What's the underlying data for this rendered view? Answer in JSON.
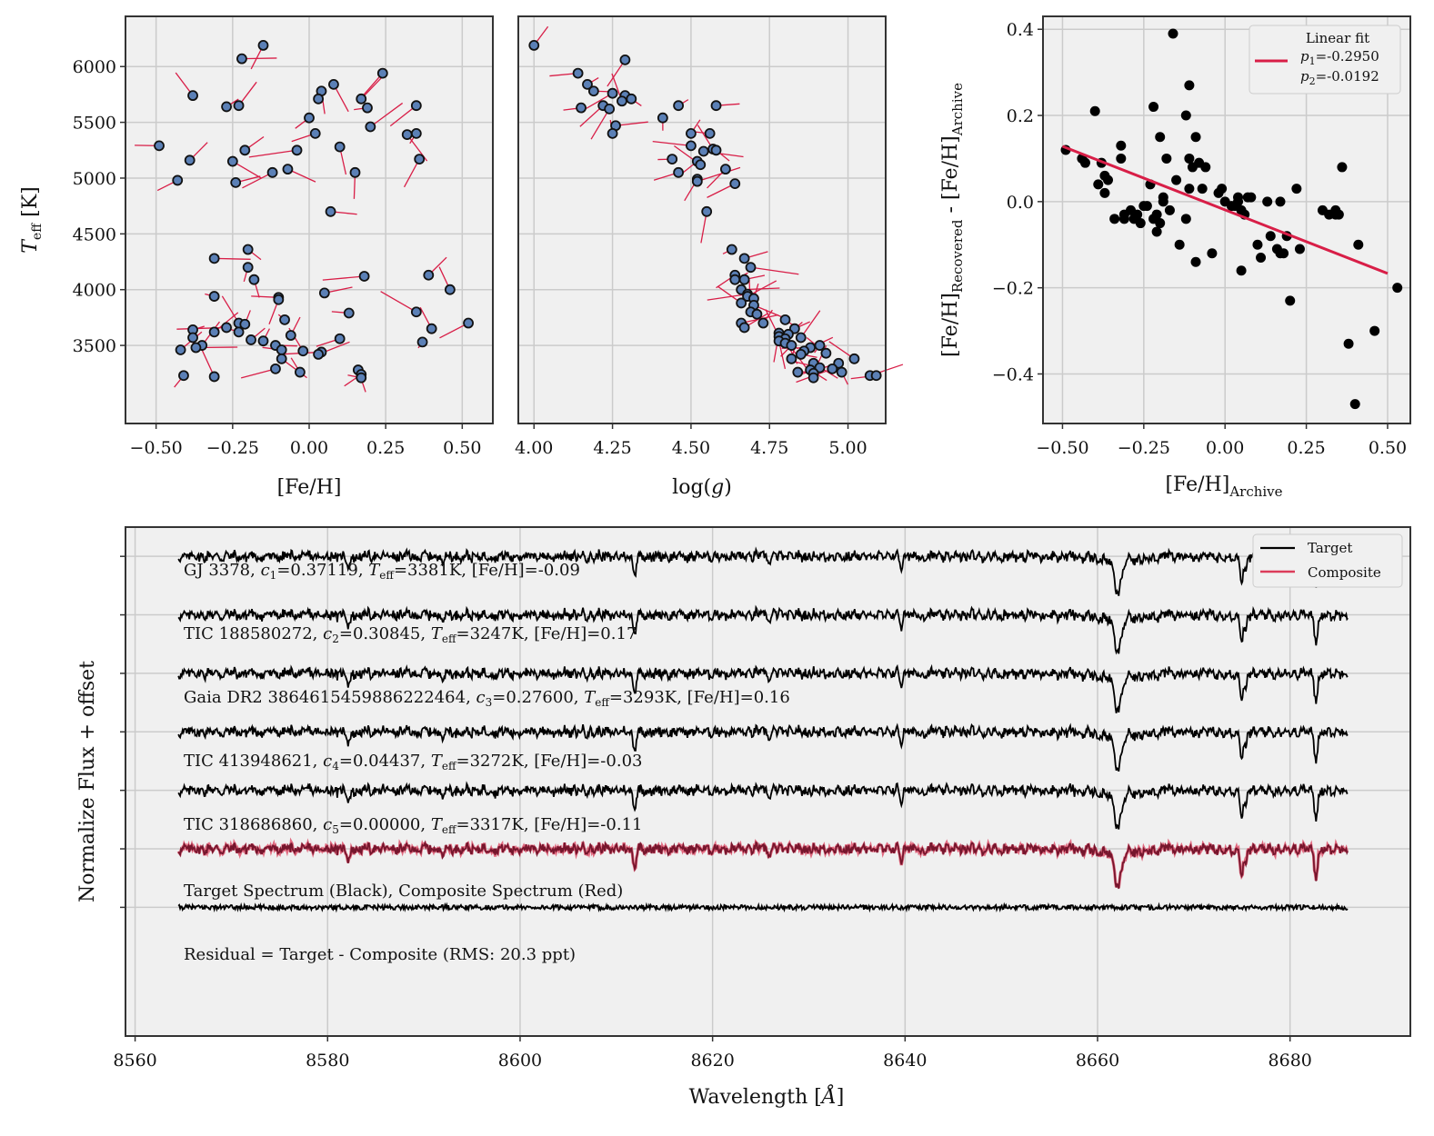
{
  "chart_data": [
    {
      "id": "teff-feh",
      "type": "scatter",
      "xlabel": "[Fe/H]",
      "ylabel_main": "T",
      "ylabel_sub": "eff",
      "ylabel_unit": " [K]",
      "xlim": [
        -0.6,
        0.6
      ],
      "ylim": [
        2800,
        6450
      ],
      "xticks": [
        -0.5,
        -0.25,
        0.0,
        0.25,
        0.5
      ],
      "xtick_labels": [
        "−0.50",
        "−0.25",
        "0.00",
        "0.25",
        "0.50"
      ],
      "yticks": [
        3500,
        4000,
        4500,
        5000,
        5500,
        6000
      ],
      "ytick_labels": [
        "3500",
        "4000",
        "4500",
        "5000",
        "5500",
        "6000"
      ],
      "points": [
        [
          -0.15,
          6190
        ],
        [
          -0.22,
          6070
        ],
        [
          -0.38,
          5740
        ],
        [
          -0.27,
          5640
        ],
        [
          -0.23,
          5650
        ],
        [
          0.24,
          5940
        ],
        [
          0.08,
          5840
        ],
        [
          0.04,
          5780
        ],
        [
          0.03,
          5710
        ],
        [
          0.17,
          5710
        ],
        [
          0.19,
          5630
        ],
        [
          0.35,
          5650
        ],
        [
          0.0,
          5540
        ],
        [
          0.2,
          5460
        ],
        [
          0.02,
          5400
        ],
        [
          0.32,
          5390
        ],
        [
          0.35,
          5400
        ],
        [
          -0.49,
          5290
        ],
        [
          -0.04,
          5250
        ],
        [
          0.1,
          5280
        ],
        [
          -0.21,
          5250
        ],
        [
          0.36,
          5170
        ],
        [
          -0.39,
          5160
        ],
        [
          -0.25,
          5150
        ],
        [
          -0.07,
          5080
        ],
        [
          -0.12,
          5050
        ],
        [
          0.15,
          5050
        ],
        [
          -0.43,
          4980
        ],
        [
          -0.24,
          4960
        ],
        [
          0.07,
          4700
        ],
        [
          -0.2,
          4360
        ],
        [
          -0.31,
          4280
        ],
        [
          -0.2,
          4200
        ],
        [
          -0.18,
          4090
        ],
        [
          0.18,
          4120
        ],
        [
          0.39,
          4130
        ],
        [
          0.46,
          4000
        ],
        [
          -0.31,
          3940
        ],
        [
          -0.1,
          3930
        ],
        [
          -0.1,
          3910
        ],
        [
          0.05,
          3970
        ],
        [
          0.13,
          3790
        ],
        [
          0.35,
          3800
        ],
        [
          -0.08,
          3730
        ],
        [
          0.52,
          3700
        ],
        [
          -0.23,
          3700
        ],
        [
          -0.21,
          3690
        ],
        [
          -0.27,
          3660
        ],
        [
          -0.23,
          3620
        ],
        [
          -0.31,
          3620
        ],
        [
          0.4,
          3650
        ],
        [
          -0.38,
          3640
        ],
        [
          -0.38,
          3570
        ],
        [
          -0.06,
          3590
        ],
        [
          -0.19,
          3550
        ],
        [
          -0.15,
          3540
        ],
        [
          0.1,
          3560
        ],
        [
          0.37,
          3530
        ],
        [
          -0.35,
          3500
        ],
        [
          -0.37,
          3480
        ],
        [
          -0.42,
          3460
        ],
        [
          -0.11,
          3500
        ],
        [
          -0.09,
          3460
        ],
        [
          -0.02,
          3450
        ],
        [
          0.04,
          3440
        ],
        [
          0.03,
          3420
        ],
        [
          -0.09,
          3380
        ],
        [
          0.16,
          3280
        ],
        [
          -0.11,
          3290
        ],
        [
          -0.03,
          3260
        ],
        [
          0.17,
          3240
        ],
        [
          -0.41,
          3230
        ],
        [
          0.17,
          3210
        ],
        [
          -0.31,
          3220
        ]
      ]
    },
    {
      "id": "teff-logg",
      "type": "scatter",
      "xlabel_prefix": "log(",
      "xlabel_var": "g",
      "xlabel_suffix": ")",
      "xlim": [
        3.95,
        5.12
      ],
      "ylim": [
        2800,
        6450
      ],
      "xticks": [
        4.0,
        4.25,
        4.5,
        4.75,
        5.0
      ],
      "xtick_labels": [
        "4.00",
        "4.25",
        "4.50",
        "4.75",
        "5.00"
      ],
      "points": [
        [
          4.0,
          6190
        ],
        [
          4.29,
          6060
        ],
        [
          4.14,
          5940
        ],
        [
          4.17,
          5840
        ],
        [
          4.19,
          5780
        ],
        [
          4.25,
          5760
        ],
        [
          4.29,
          5740
        ],
        [
          4.31,
          5710
        ],
        [
          4.28,
          5690
        ],
        [
          4.22,
          5650
        ],
        [
          4.15,
          5630
        ],
        [
          4.24,
          5620
        ],
        [
          4.46,
          5650
        ],
        [
          4.58,
          5650
        ],
        [
          4.41,
          5540
        ],
        [
          4.26,
          5470
        ],
        [
          4.25,
          5400
        ],
        [
          4.5,
          5400
        ],
        [
          4.56,
          5400
        ],
        [
          4.5,
          5290
        ],
        [
          4.57,
          5260
        ],
        [
          4.58,
          5250
        ],
        [
          4.54,
          5240
        ],
        [
          4.44,
          5170
        ],
        [
          4.52,
          5150
        ],
        [
          4.53,
          5120
        ],
        [
          4.61,
          5080
        ],
        [
          4.46,
          5050
        ],
        [
          4.52,
          4990
        ],
        [
          4.52,
          4970
        ],
        [
          4.64,
          4950
        ],
        [
          4.55,
          4700
        ],
        [
          4.63,
          4360
        ],
        [
          4.67,
          4280
        ],
        [
          4.69,
          4200
        ],
        [
          4.64,
          4130
        ],
        [
          4.64,
          4090
        ],
        [
          4.67,
          4090
        ],
        [
          4.66,
          4000
        ],
        [
          4.68,
          3960
        ],
        [
          4.68,
          3940
        ],
        [
          4.7,
          3920
        ],
        [
          4.66,
          3880
        ],
        [
          4.7,
          3860
        ],
        [
          4.69,
          3800
        ],
        [
          4.71,
          3780
        ],
        [
          4.73,
          3700
        ],
        [
          4.66,
          3700
        ],
        [
          4.67,
          3660
        ],
        [
          4.8,
          3730
        ],
        [
          4.83,
          3650
        ],
        [
          4.78,
          3610
        ],
        [
          4.81,
          3600
        ],
        [
          4.78,
          3580
        ],
        [
          4.8,
          3560
        ],
        [
          4.85,
          3570
        ],
        [
          4.78,
          3540
        ],
        [
          4.8,
          3520
        ],
        [
          4.82,
          3500
        ],
        [
          4.88,
          3480
        ],
        [
          4.91,
          3500
        ],
        [
          4.86,
          3450
        ],
        [
          4.85,
          3420
        ],
        [
          4.82,
          3380
        ],
        [
          4.93,
          3430
        ],
        [
          4.89,
          3340
        ],
        [
          4.97,
          3340
        ],
        [
          5.02,
          3380
        ],
        [
          4.88,
          3280
        ],
        [
          4.91,
          3300
        ],
        [
          4.95,
          3290
        ],
        [
          4.84,
          3260
        ],
        [
          4.89,
          3250
        ],
        [
          4.98,
          3260
        ],
        [
          5.07,
          3230
        ],
        [
          5.09,
          3230
        ],
        [
          4.89,
          3210
        ]
      ]
    },
    {
      "id": "feh-residual",
      "type": "scatter",
      "xlabel_main": "[Fe/H]",
      "xlabel_sub": "Archive",
      "ylabel_a": "[Fe/H]",
      "ylabel_a_sub": "Recovered",
      "ylabel_mid": " - [Fe/H]",
      "ylabel_b_sub": "Archive",
      "xlim": [
        -0.56,
        0.57
      ],
      "ylim": [
        -0.515,
        0.43
      ],
      "xticks": [
        -0.5,
        -0.25,
        0.0,
        0.25,
        0.5
      ],
      "xtick_labels": [
        "−0.50",
        "−0.25",
        "0.00",
        "0.25",
        "0.50"
      ],
      "yticks": [
        -0.4,
        -0.2,
        0.0,
        0.2,
        0.4
      ],
      "ytick_labels": [
        "−0.4",
        "−0.2",
        "0.0",
        "0.2",
        "0.4"
      ],
      "fit": {
        "p1": -0.295,
        "p2": -0.0192,
        "x_start": -0.5,
        "x_end": 0.5
      },
      "legend_title": "Linear fit",
      "legend_p1_var": "p",
      "legend_p1_sub": "1",
      "legend_p1_val": "=-0.2950",
      "legend_p2_var": "p",
      "legend_p2_sub": "2",
      "legend_p2_val": "=-0.0192",
      "points": [
        [
          -0.49,
          0.12
        ],
        [
          -0.44,
          0.1
        ],
        [
          -0.43,
          0.09
        ],
        [
          -0.4,
          0.21
        ],
        [
          -0.39,
          0.04
        ],
        [
          -0.38,
          0.09
        ],
        [
          -0.37,
          0.02
        ],
        [
          -0.37,
          0.06
        ],
        [
          -0.36,
          0.05
        ],
        [
          -0.34,
          -0.04
        ],
        [
          -0.32,
          0.13
        ],
        [
          -0.32,
          0.1
        ],
        [
          -0.31,
          -0.03
        ],
        [
          -0.31,
          -0.04
        ],
        [
          -0.29,
          -0.02
        ],
        [
          -0.28,
          -0.04
        ],
        [
          -0.27,
          -0.03
        ],
        [
          -0.26,
          -0.05
        ],
        [
          -0.25,
          -0.01
        ],
        [
          -0.24,
          -0.01
        ],
        [
          -0.23,
          0.04
        ],
        [
          -0.22,
          0.22
        ],
        [
          -0.22,
          -0.04
        ],
        [
          -0.21,
          -0.07
        ],
        [
          -0.21,
          -0.03
        ],
        [
          -0.2,
          -0.05
        ],
        [
          -0.2,
          0.15
        ],
        [
          -0.19,
          0.0
        ],
        [
          -0.19,
          0.01
        ],
        [
          -0.18,
          0.1
        ],
        [
          -0.17,
          -0.02
        ],
        [
          -0.16,
          0.39
        ],
        [
          -0.15,
          0.05
        ],
        [
          -0.14,
          -0.1
        ],
        [
          -0.12,
          0.2
        ],
        [
          -0.12,
          -0.04
        ],
        [
          -0.11,
          0.03
        ],
        [
          -0.11,
          0.27
        ],
        [
          -0.11,
          0.1
        ],
        [
          -0.1,
          0.08
        ],
        [
          -0.09,
          0.15
        ],
        [
          -0.09,
          -0.14
        ],
        [
          -0.08,
          0.09
        ],
        [
          -0.07,
          0.03
        ],
        [
          -0.06,
          0.08
        ],
        [
          -0.04,
          -0.12
        ],
        [
          -0.02,
          0.02
        ],
        [
          -0.01,
          0.03
        ],
        [
          0.0,
          0.0
        ],
        [
          0.02,
          -0.01
        ],
        [
          0.03,
          -0.01
        ],
        [
          0.04,
          0.0
        ],
        [
          0.04,
          0.01
        ],
        [
          0.05,
          -0.02
        ],
        [
          0.05,
          -0.16
        ],
        [
          0.06,
          -0.03
        ],
        [
          0.07,
          0.01
        ],
        [
          0.08,
          0.01
        ],
        [
          0.1,
          -0.1
        ],
        [
          0.11,
          -0.13
        ],
        [
          0.13,
          0.0
        ],
        [
          0.14,
          -0.08
        ],
        [
          0.16,
          -0.11
        ],
        [
          0.17,
          -0.12
        ],
        [
          0.17,
          0.0
        ],
        [
          0.18,
          -0.12
        ],
        [
          0.19,
          -0.08
        ],
        [
          0.2,
          -0.23
        ],
        [
          0.22,
          0.03
        ],
        [
          0.23,
          -0.11
        ],
        [
          0.3,
          -0.02
        ],
        [
          0.32,
          -0.03
        ],
        [
          0.34,
          -0.02
        ],
        [
          0.34,
          -0.03
        ],
        [
          0.35,
          -0.03
        ],
        [
          0.36,
          0.08
        ],
        [
          0.38,
          -0.33
        ],
        [
          0.4,
          -0.47
        ],
        [
          0.41,
          -0.1
        ],
        [
          0.46,
          -0.3
        ],
        [
          0.53,
          -0.2
        ]
      ]
    },
    {
      "id": "spectra",
      "type": "line",
      "xlabel": "Wavelength [",
      "xlabel_unit": "Å",
      "xlabel_close": "]",
      "ylabel": "Normalize Flux + offset",
      "xlim": [
        8559,
        8692.5
      ],
      "x_range": [
        8564.5,
        8686
      ],
      "xticks": [
        8560,
        8580,
        8600,
        8620,
        8640,
        8660,
        8680
      ],
      "xtick_labels": [
        "8560",
        "8580",
        "8600",
        "8620",
        "8640",
        "8660",
        "8680"
      ],
      "ylim": [
        -8.2,
        0.5
      ],
      "offsets": [
        0,
        -1,
        -2,
        -3,
        -4,
        -5,
        -6
      ],
      "absorption_lines": [
        {
          "center": 8662.1,
          "depth": 0.55,
          "width": 0.35
        },
        {
          "center": 8675.0,
          "depth": 0.4,
          "width": 0.18
        },
        {
          "center": 8675.4,
          "depth": 0.3,
          "width": 0.12
        },
        {
          "center": 8682.7,
          "depth": 0.45,
          "width": 0.18
        },
        {
          "center": 8611.9,
          "depth": 0.3,
          "width": 0.15
        },
        {
          "center": 8582.2,
          "depth": 0.22,
          "width": 0.15
        },
        {
          "center": 8639.6,
          "depth": 0.18,
          "width": 0.12
        },
        {
          "center": 8626.0,
          "depth": 0.12,
          "width": 0.1
        },
        {
          "center": 8592.0,
          "depth": 0.12,
          "width": 0.1
        }
      ],
      "labels": [
        {
          "parts": [
            "GJ 3378, ",
            "c",
            "1",
            "=0.37119, ",
            "T",
            "eff",
            "=3381K, [Fe/H]=-0.09"
          ]
        },
        {
          "parts": [
            "TIC 188580272, ",
            "c",
            "2",
            "=0.30845, ",
            "T",
            "eff",
            "=3247K, [Fe/H]=0.17"
          ]
        },
        {
          "parts": [
            "Gaia DR2 3864615459886222464, ",
            "c",
            "3",
            "=0.27600, ",
            "T",
            "eff",
            "=3293K, [Fe/H]=0.16"
          ]
        },
        {
          "parts": [
            "TIC 413948621, ",
            "c",
            "4",
            "=0.04437, ",
            "T",
            "eff",
            "=3272K, [Fe/H]=-0.03"
          ]
        },
        {
          "parts": [
            "TIC 318686860, ",
            "c",
            "5",
            "=0.00000, ",
            "T",
            "eff",
            "=3317K, [Fe/H]=-0.11"
          ]
        }
      ],
      "composite_label": "Target Spectrum (Black), Composite Spectrum (Red)",
      "residual_label": "Residual = Target - Composite (RMS: 20.3 ppt)",
      "legend": [
        "Target",
        "Composite"
      ]
    }
  ],
  "colors": {
    "axes_bg": "#f0f0f0",
    "grid": "#cbcbcb",
    "spine": "#333333",
    "marker_fill": "#5b80b6",
    "marker_edge": "#111111",
    "pair_line": "#d81e47",
    "fit_line": "#d81e47",
    "target": "#000000",
    "composite": "#dc3c5a",
    "composite_overlap": "#6a0d25",
    "residual_dot": "#000000"
  }
}
